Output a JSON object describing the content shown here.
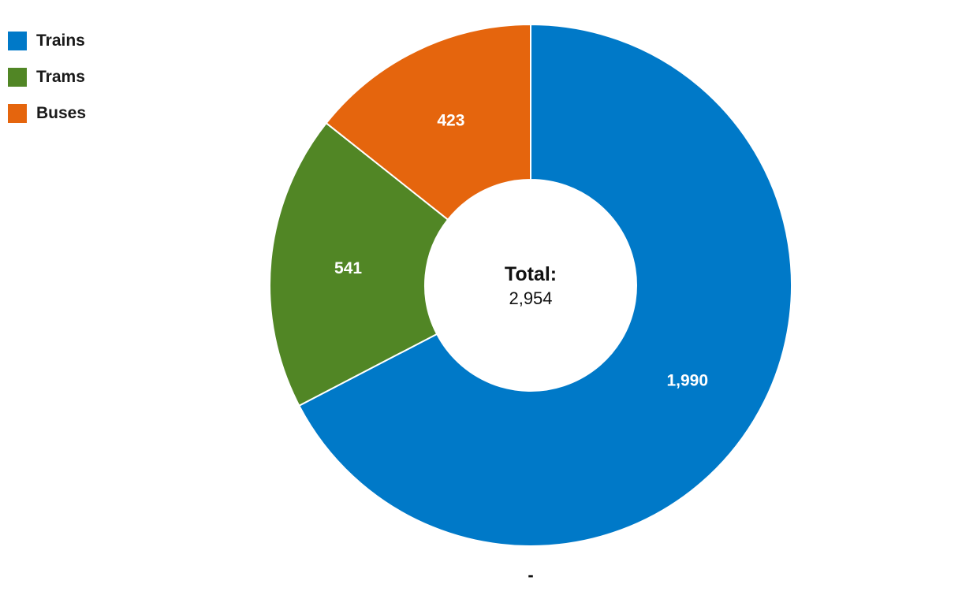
{
  "chart_data": {
    "type": "pie",
    "variant": "donut",
    "categories": [
      "Trains",
      "Trams",
      "Buses"
    ],
    "values": [
      1990,
      541,
      423
    ],
    "value_labels": [
      "1,990",
      "541",
      "423"
    ],
    "colors": [
      "#0079C8",
      "#518625",
      "#E5650D"
    ],
    "legend_position": "top-left",
    "center": {
      "title": "Total:",
      "value": "2,954"
    },
    "footer_label": "-"
  }
}
